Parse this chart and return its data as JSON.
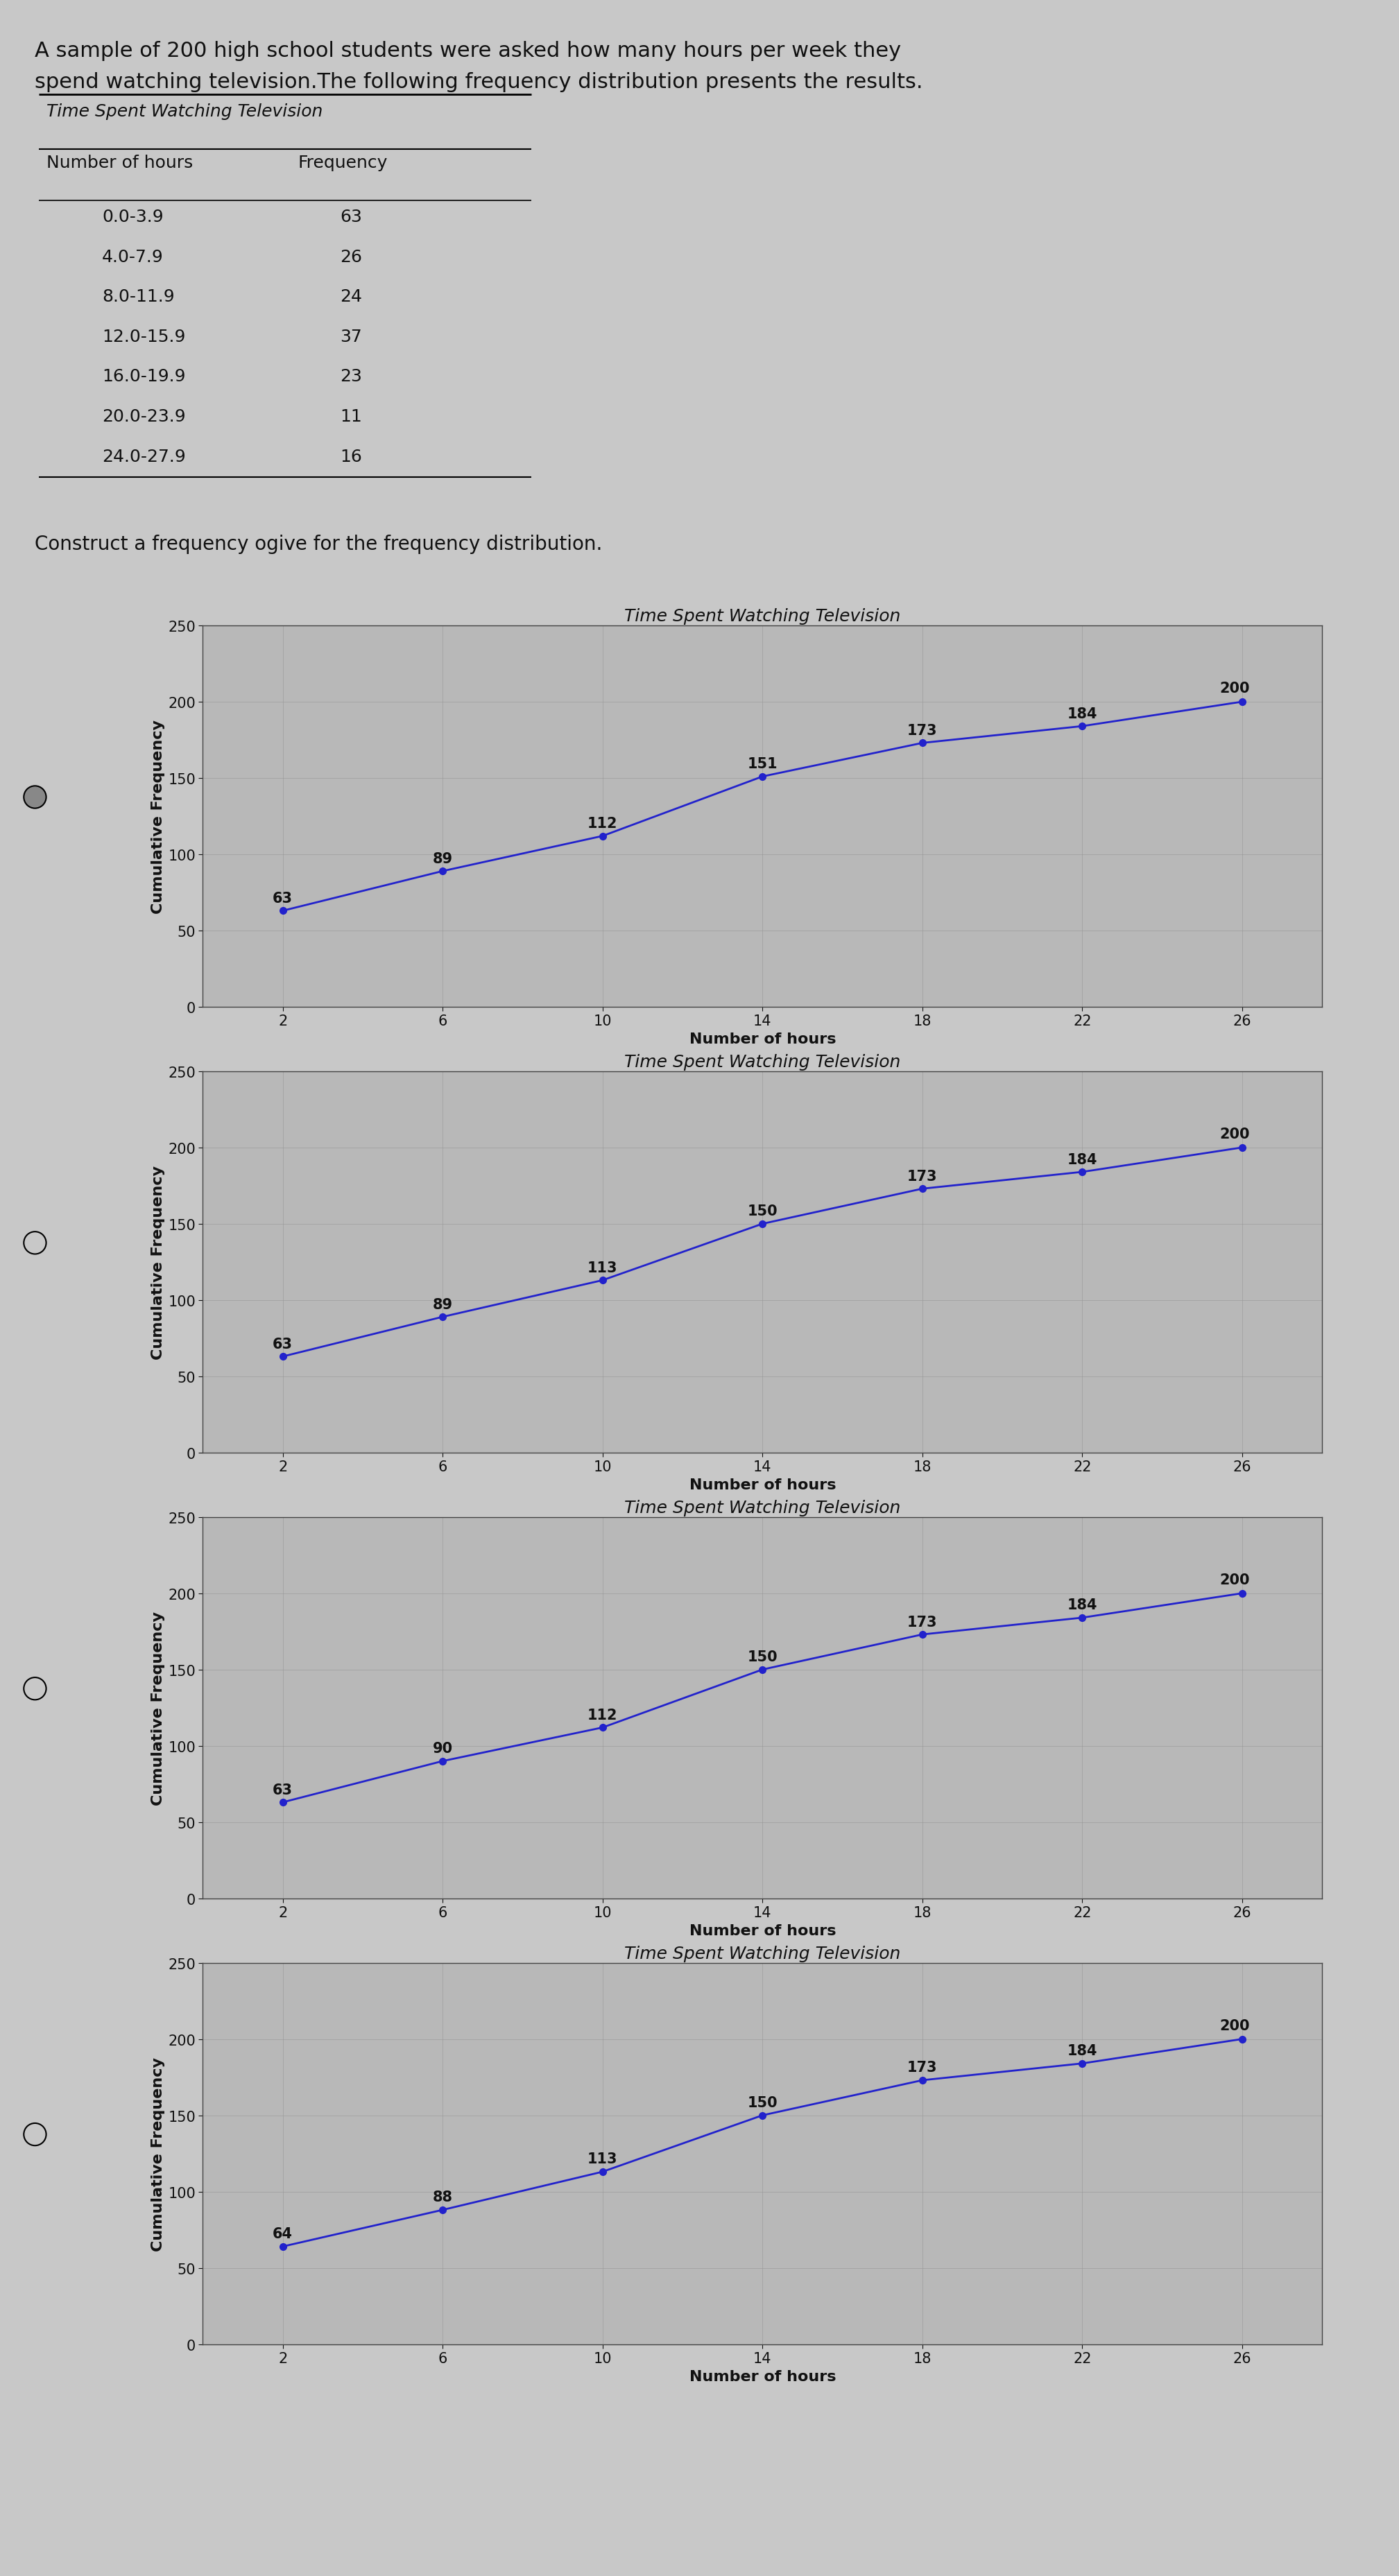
{
  "intro_text_line1": "A sample of 200 high school students were asked how many hours per week they",
  "intro_text_line2": "spend watching television.The following frequency distribution presents the results.",
  "table_title": "Time Spent Watching Television",
  "table_headers": [
    "Number of hours",
    "Frequency"
  ],
  "table_data": [
    [
      "0.0-3.9",
      "63"
    ],
    [
      "4.0-7.9",
      "26"
    ],
    [
      "8.0-11.9",
      "24"
    ],
    [
      "12.0-15.9",
      "37"
    ],
    [
      "16.0-19.9",
      "23"
    ],
    [
      "20.0-23.9",
      "11"
    ],
    [
      "24.0-27.9",
      "16"
    ]
  ],
  "construct_text": "Construct a frequency ogive for the frequency distribution.",
  "chart_title": "Time Spent Watching Television",
  "xlabel": "Number of hours",
  "ylabel": "Cumulative Frequency",
  "x_ticks": [
    2,
    6,
    10,
    14,
    18,
    22,
    26
  ],
  "xlim": [
    0,
    28
  ],
  "ylim": [
    0,
    250
  ],
  "yticks": [
    0,
    50,
    100,
    150,
    200,
    250
  ],
  "charts": [
    {
      "x": [
        2,
        6,
        10,
        14,
        18,
        22,
        26
      ],
      "y": [
        63,
        89,
        112,
        151,
        173,
        184,
        200
      ],
      "labels": [
        "63",
        "89",
        "112",
        "151",
        "173",
        "184",
        "200"
      ],
      "selected": true
    },
    {
      "x": [
        2,
        6,
        10,
        14,
        18,
        22,
        26
      ],
      "y": [
        63,
        89,
        113,
        150,
        173,
        184,
        200
      ],
      "labels": [
        "63",
        "89",
        "113",
        "150",
        "173",
        "184",
        "200"
      ],
      "selected": false
    },
    {
      "x": [
        2,
        6,
        10,
        14,
        18,
        22,
        26
      ],
      "y": [
        63,
        90,
        112,
        150,
        173,
        184,
        200
      ],
      "labels": [
        "63",
        "90",
        "112",
        "150",
        "173",
        "184",
        "200"
      ],
      "selected": false
    },
    {
      "x": [
        2,
        6,
        10,
        14,
        18,
        22,
        26
      ],
      "y": [
        64,
        88,
        113,
        150,
        173,
        184,
        200
      ],
      "labels": [
        "64",
        "88",
        "113",
        "150",
        "173",
        "184",
        "200"
      ],
      "selected": false
    }
  ],
  "line_color": "#2222cc",
  "marker_color": "#2222cc",
  "bg_color": "#c8c8c8",
  "plot_bg_color": "#b8b8b8",
  "text_color": "#111111",
  "font_size_intro": 22,
  "font_size_table_title": 18,
  "font_size_table": 18,
  "font_size_construct": 20,
  "font_size_chart_title": 18,
  "font_size_axis_label": 16,
  "font_size_tick": 15,
  "font_size_annotation": 15
}
